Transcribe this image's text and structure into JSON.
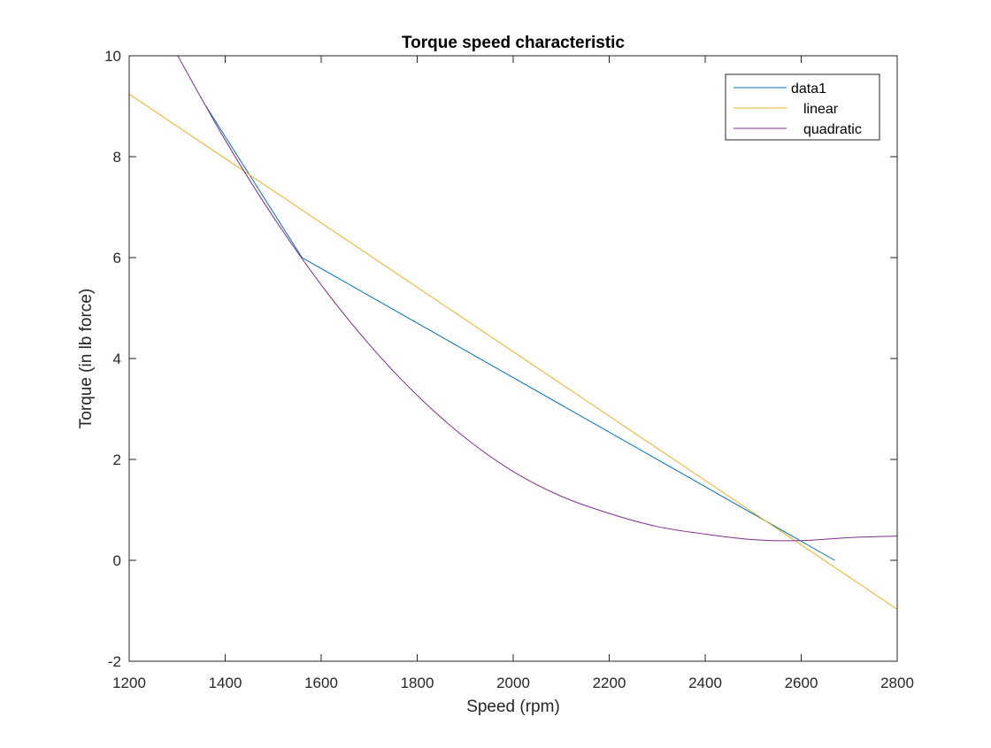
{
  "chart_data": {
    "type": "line",
    "title": "Torque speed characteristic",
    "xlabel": "Speed (rpm)",
    "ylabel": "Torque (in lb force)",
    "xlim": [
      1200,
      2800
    ],
    "ylim": [
      -2,
      10
    ],
    "xticks": [
      1200,
      1400,
      1600,
      1800,
      2000,
      2200,
      2400,
      2600,
      2800
    ],
    "yticks": [
      -2,
      0,
      2,
      4,
      6,
      8,
      10
    ],
    "grid": false,
    "legend_position": "top-right",
    "series": [
      {
        "name": "data1",
        "color": "#0072BD",
        "x": [
          1360,
          1560,
          2670
        ],
        "y": [
          9.0,
          6.0,
          0.0
        ]
      },
      {
        "name": "linear",
        "color": "#EDB120",
        "x": [
          1200,
          2800
        ],
        "y": [
          9.24,
          -0.97
        ]
      },
      {
        "name": "quadratic",
        "color": "#7E2F8E",
        "x": [
          1300,
          1400,
          1500,
          1600,
          1700,
          1800,
          1900,
          2000,
          2100,
          2200,
          2300,
          2400,
          2500,
          2600,
          2700,
          2800
        ],
        "y": [
          10.02,
          8.33,
          6.81,
          5.46,
          4.28,
          3.27,
          2.43,
          1.76,
          1.27,
          0.93,
          0.67,
          0.52,
          0.41,
          0.39,
          0.45,
          0.48
        ]
      }
    ]
  }
}
